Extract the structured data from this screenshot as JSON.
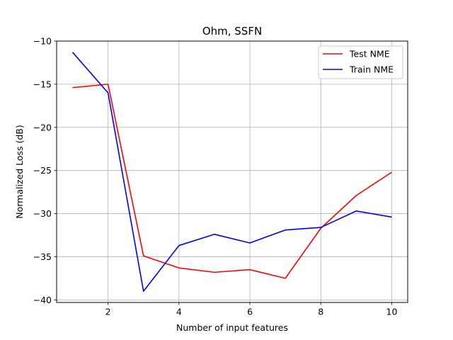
{
  "chart_data": {
    "type": "line",
    "title": "Ohm, SSFN",
    "xlabel": "Number of input features",
    "ylabel": "Normalized Loss (dB)",
    "xlim": [
      0.55,
      10.45
    ],
    "ylim": [
      -40.3,
      -10
    ],
    "xticks": [
      2,
      4,
      6,
      8,
      10
    ],
    "yticks": [
      -40,
      -35,
      -30,
      -25,
      -20,
      -15,
      -10
    ],
    "xtick_labels": [
      "2",
      "4",
      "6",
      "8",
      "10"
    ],
    "ytick_labels": [
      "−40",
      "−35",
      "−30",
      "−25",
      "−20",
      "−15",
      "−10"
    ],
    "grid": true,
    "legend_position": "top-right",
    "series": [
      {
        "name": "Test NME",
        "color": "#ff0000",
        "x": [
          1,
          2,
          3,
          4,
          5,
          6,
          7,
          8,
          9,
          10
        ],
        "y": [
          -15.4,
          -15.0,
          -34.9,
          -36.3,
          -36.8,
          -36.5,
          -37.5,
          -31.7,
          -27.9,
          -25.2
        ]
      },
      {
        "name": "Train NME",
        "color": "#0000ff",
        "x": [
          1,
          2,
          3,
          4,
          5,
          6,
          7,
          8,
          9,
          10
        ],
        "y": [
          -11.3,
          -16.0,
          -39.0,
          -33.7,
          -32.4,
          -33.4,
          -31.9,
          -31.6,
          -29.7,
          -30.4
        ]
      }
    ]
  }
}
